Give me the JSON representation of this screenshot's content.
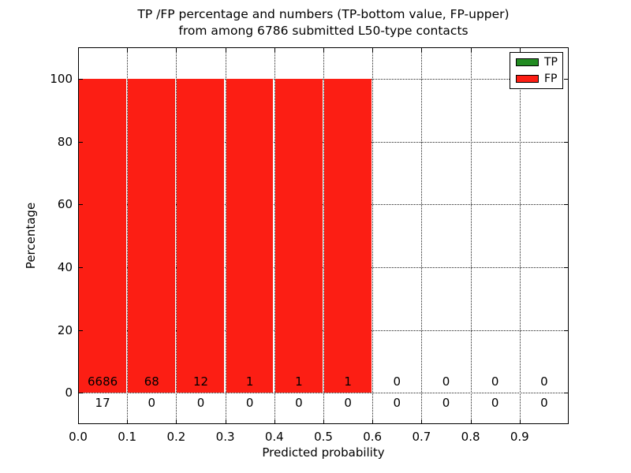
{
  "chart_data": {
    "type": "bar",
    "stacked": true,
    "title_line1": "TP /FP percentage and numbers (TP-bottom value, FP-upper)",
    "title_line2": "from among 6786 submitted L50-type contacts",
    "xlabel": "Predicted probability",
    "ylabel": "Percentage",
    "xlim": [
      0.0,
      1.0
    ],
    "ylim": [
      -10,
      110
    ],
    "xticks": [
      0.0,
      0.1,
      0.2,
      0.3,
      0.4,
      0.5,
      0.6,
      0.7,
      0.8,
      0.9
    ],
    "xtick_labels": [
      "0.0",
      "0.1",
      "0.2",
      "0.3",
      "0.4",
      "0.5",
      "0.6",
      "0.7",
      "0.8",
      "0.9"
    ],
    "yticks": [
      0,
      20,
      40,
      60,
      80,
      100
    ],
    "ytick_labels": [
      "0",
      "20",
      "40",
      "60",
      "80",
      "100"
    ],
    "bin_width": 0.1,
    "bin_edges": [
      0.0,
      0.1,
      0.2,
      0.3,
      0.4,
      0.5,
      0.6,
      0.7,
      0.8,
      0.9,
      1.0
    ],
    "grid": {
      "style": "dotted",
      "color": "#222222",
      "on": true
    },
    "series": [
      {
        "name": "TP",
        "color": "#228b22",
        "counts": [
          17,
          0,
          0,
          0,
          0,
          0,
          0,
          0,
          0,
          0
        ],
        "pct_displayed": [
          0,
          0,
          0,
          0,
          0,
          0,
          0,
          0,
          0,
          0
        ]
      },
      {
        "name": "FP",
        "color": "#fc1e14",
        "counts": [
          6686,
          68,
          12,
          1,
          1,
          1,
          0,
          0,
          0,
          0
        ],
        "pct_displayed": [
          100,
          100,
          100,
          100,
          100,
          100,
          0,
          0,
          0,
          0
        ]
      }
    ],
    "total_submitted": 6786,
    "legend": {
      "position": "upper-right",
      "entries": [
        {
          "label": "TP",
          "color": "#228b22"
        },
        {
          "label": "FP",
          "color": "#fc1e14"
        }
      ]
    }
  }
}
